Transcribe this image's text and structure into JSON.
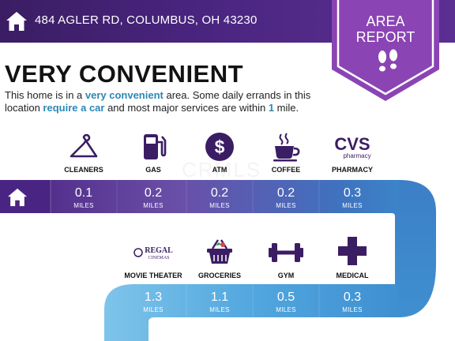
{
  "header": {
    "address": "484 AGLER RD, COLUMBUS, OH 43230"
  },
  "badge": {
    "line1": "AREA",
    "line2": "REPORT"
  },
  "headline": "VERY CONVENIENT",
  "description": {
    "p1": "This home is in a ",
    "h1": "very convenient",
    "p2": " area. Some daily errands in this location ",
    "h2": "require a car",
    "p3": " and most major services are within ",
    "h3": "1",
    "p4": " mile."
  },
  "watermark": "CRMLS",
  "row1": [
    {
      "name": "CLEANERS",
      "icon": "hanger-icon",
      "distance": "0.1",
      "unit": "MILES"
    },
    {
      "name": "GAS",
      "icon": "gas-pump-icon",
      "distance": "0.2",
      "unit": "MILES"
    },
    {
      "name": "ATM",
      "icon": "dollar-icon",
      "distance": "0.2",
      "unit": "MILES"
    },
    {
      "name": "COFFEE",
      "icon": "coffee-cup-icon",
      "distance": "0.2",
      "unit": "MILES"
    },
    {
      "name": "PHARMACY",
      "icon": "cvs-logo",
      "logo_text": "CVS",
      "logo_sub": "pharmacy",
      "distance": "0.3",
      "unit": "MILES"
    }
  ],
  "row2": [
    {
      "name": "MOVIE THEATER",
      "icon": "regal-cinemas-logo",
      "logo_text": "REGAL",
      "logo_sub": "CINEMAS",
      "distance": "1.3",
      "unit": "MILES"
    },
    {
      "name": "GROCERIES",
      "icon": "basket-icon",
      "distance": "1.1",
      "unit": "MILES"
    },
    {
      "name": "GYM",
      "icon": "dumbbell-icon",
      "distance": "0.5",
      "unit": "MILES"
    },
    {
      "name": "MEDICAL",
      "icon": "medical-cross-icon",
      "distance": "0.3",
      "unit": "MILES"
    }
  ],
  "colors": {
    "purple": "#4b2480",
    "blue": "#3f8fcc",
    "light_blue": "#7cc4ea",
    "accent": "#2b88b8"
  }
}
